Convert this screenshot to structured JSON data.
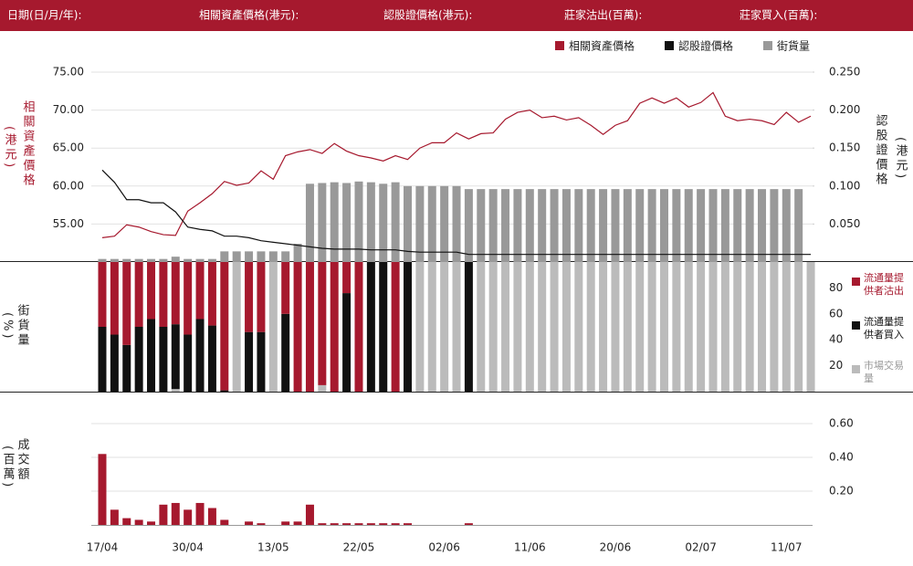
{
  "header": {
    "fields": [
      "日期(日/月/年):",
      "相關資產價格(港元):",
      "認股證價格(港元):",
      "莊家沽出(百萬):",
      "莊家買入(百萬):"
    ]
  },
  "chart_data": [
    {
      "type": "line",
      "ylabel": "相關資產價格",
      "ylabel_unit": "(港元)",
      "y2label": "認股證價格",
      "y2label_unit": "(港元)",
      "ylim": [
        50,
        75
      ],
      "yticks": [
        {
          "value": 55,
          "label": "55.00"
        },
        {
          "value": 60,
          "label": "60.00"
        },
        {
          "value": 65,
          "label": "65.00"
        },
        {
          "value": 70,
          "label": "70.00"
        },
        {
          "value": 75,
          "label": "75.00"
        }
      ],
      "y2lim": [
        0,
        0.25
      ],
      "y2ticks": [
        {
          "value": 0.05,
          "label": "0.050"
        },
        {
          "value": 0.1,
          "label": "0.100"
        },
        {
          "value": 0.15,
          "label": "0.150"
        },
        {
          "value": 0.2,
          "label": "0.200"
        },
        {
          "value": 0.25,
          "label": "0.250"
        }
      ],
      "grid": true,
      "series": [
        {
          "name": "相關資產價格",
          "color": "#a6192e",
          "type": "line",
          "values": [
            53.2,
            53.4,
            54.9,
            54.6,
            54.0,
            53.6,
            53.5,
            56.7,
            57.8,
            59.0,
            60.6,
            60.1,
            60.4,
            62.0,
            60.9,
            64.0,
            64.5,
            64.8,
            64.3,
            65.6,
            64.6,
            64.0,
            63.7,
            63.3,
            64.0,
            63.5,
            65.0,
            65.7,
            65.7,
            67.0,
            66.2,
            66.9,
            67.0,
            68.8,
            69.7,
            70.0,
            69.0,
            69.2,
            68.7,
            69.0,
            68.0,
            66.8,
            68.0,
            68.6,
            70.9,
            71.6,
            70.9,
            71.6,
            70.4,
            71.0,
            72.3,
            69.2,
            68.6,
            68.8,
            68.6,
            68.1,
            69.7,
            68.4,
            69.2
          ]
        },
        {
          "name": "認股證價格",
          "color": "#111111",
          "type": "line",
          "axis": "y2",
          "values": [
            0.121,
            0.105,
            0.082,
            0.082,
            0.078,
            0.078,
            0.066,
            0.046,
            0.043,
            0.041,
            0.034,
            0.034,
            0.032,
            0.028,
            0.026,
            0.024,
            0.022,
            0.02,
            0.018,
            0.017,
            0.017,
            0.017,
            0.016,
            0.016,
            0.016,
            0.014,
            0.013,
            0.013,
            0.013,
            0.013,
            0.01,
            0.01,
            0.01,
            0.01,
            0.01,
            0.01,
            0.01,
            0.01,
            0.01,
            0.01,
            0.01,
            0.01,
            0.01,
            0.01,
            0.01,
            0.01,
            0.01,
            0.01,
            0.01,
            0.01,
            0.01,
            0.01,
            0.01,
            0.01,
            0.01,
            0.01,
            0.01,
            0.01,
            0.01
          ]
        },
        {
          "name": "街貨量",
          "color": "#999999",
          "type": "bar",
          "axis": "y2",
          "values": [
            0.004,
            0.004,
            0.004,
            0.004,
            0.004,
            0.004,
            0.007,
            0.004,
            0.004,
            0.004,
            0.014,
            0.014,
            0.014,
            0.014,
            0.014,
            0.014,
            0.024,
            0.103,
            0.104,
            0.105,
            0.104,
            0.106,
            0.105,
            0.103,
            0.105,
            0.1,
            0.1,
            0.1,
            0.1,
            0.1,
            0.096,
            0.096,
            0.096,
            0.096,
            0.096,
            0.096,
            0.096,
            0.096,
            0.096,
            0.096,
            0.096,
            0.096,
            0.096,
            0.096,
            0.096,
            0.096,
            0.096,
            0.096,
            0.096,
            0.096,
            0.096,
            0.096,
            0.096,
            0.096,
            0.096,
            0.096,
            0.096,
            0.096,
            null
          ]
        }
      ]
    },
    {
      "type": "stacked_bar",
      "ylabel": "街貨量",
      "ylabel_unit": "(%)",
      "ylim": [
        0,
        100
      ],
      "yticks": [
        20,
        40,
        60,
        80
      ],
      "series": [
        {
          "name": "流通量提供者沽出",
          "color": "#a6192e",
          "values": [
            50,
            56,
            64,
            50,
            44,
            50,
            48,
            56,
            44,
            49,
            99,
            0,
            54,
            54,
            0,
            40,
            100,
            100,
            95,
            100,
            24,
            100,
            0,
            0,
            100,
            0,
            0,
            0,
            0,
            0,
            0,
            0,
            0,
            0,
            0,
            0,
            0,
            0,
            0,
            0,
            0,
            0,
            0,
            0,
            0,
            0,
            0,
            0,
            0,
            0,
            0,
            0,
            0,
            0,
            0,
            0,
            0,
            0,
            0
          ]
        },
        {
          "name": "流通量提供者買入",
          "color": "#111111",
          "values": [
            50,
            44,
            36,
            50,
            56,
            50,
            50,
            44,
            56,
            51,
            1,
            0,
            46,
            46,
            0,
            60,
            0,
            0,
            0,
            0,
            76,
            0,
            100,
            100,
            0,
            100,
            0,
            0,
            0,
            0,
            100,
            0,
            0,
            0,
            0,
            0,
            0,
            0,
            0,
            0,
            0,
            0,
            0,
            0,
            0,
            0,
            0,
            0,
            0,
            0,
            0,
            0,
            0,
            0,
            0,
            0,
            0,
            0,
            0
          ]
        },
        {
          "name": "市場交易量",
          "color": "#bbbbbb",
          "values": [
            0,
            0,
            0,
            0,
            0,
            0,
            2,
            0,
            0,
            0,
            0,
            100,
            0,
            0,
            100,
            0,
            0,
            0,
            5,
            0,
            0,
            0,
            0,
            0,
            0,
            0,
            100,
            100,
            100,
            100,
            0,
            100,
            100,
            100,
            100,
            100,
            100,
            100,
            100,
            100,
            100,
            100,
            100,
            100,
            100,
            100,
            100,
            100,
            100,
            100,
            100,
            100,
            100,
            100,
            100,
            100,
            100,
            100,
            100
          ]
        }
      ]
    },
    {
      "type": "bar",
      "ylabel": "成交額",
      "ylabel_unit": "(百萬)",
      "ylim": [
        0,
        0.8
      ],
      "yticks": [
        {
          "value": 0.2,
          "label": "0.20"
        },
        {
          "value": 0.4,
          "label": "0.40"
        },
        {
          "value": 0.6,
          "label": "0.60"
        }
      ],
      "grid": true,
      "color": "#a6192e",
      "categories": [
        "17/04",
        null,
        null,
        null,
        null,
        null,
        null,
        "30/04",
        null,
        null,
        null,
        null,
        null,
        null,
        "13/05",
        null,
        null,
        null,
        null,
        null,
        null,
        "22/05",
        null,
        null,
        null,
        null,
        null,
        null,
        "02/06",
        null,
        null,
        null,
        null,
        null,
        null,
        "11/06",
        null,
        null,
        null,
        null,
        null,
        null,
        "20/06",
        null,
        null,
        null,
        null,
        null,
        null,
        "02/07",
        null,
        null,
        null,
        null,
        null,
        null,
        "11/07",
        null,
        null
      ],
      "values": [
        0.42,
        0.09,
        0.04,
        0.03,
        0.02,
        0.12,
        0.13,
        0.09,
        0.13,
        0.1,
        0.03,
        0,
        0.02,
        0.01,
        0,
        0.02,
        0.02,
        0.12,
        0.01,
        0.01,
        0.01,
        0.01,
        0.01,
        0.01,
        0.01,
        0.01,
        0,
        0,
        0,
        0,
        0.01,
        0,
        0,
        0,
        0,
        0,
        0,
        0,
        0,
        0,
        0,
        0,
        0,
        0,
        0,
        0,
        0,
        0,
        0,
        0,
        0,
        0,
        0,
        0,
        0,
        0,
        0,
        0,
        0
      ]
    }
  ]
}
